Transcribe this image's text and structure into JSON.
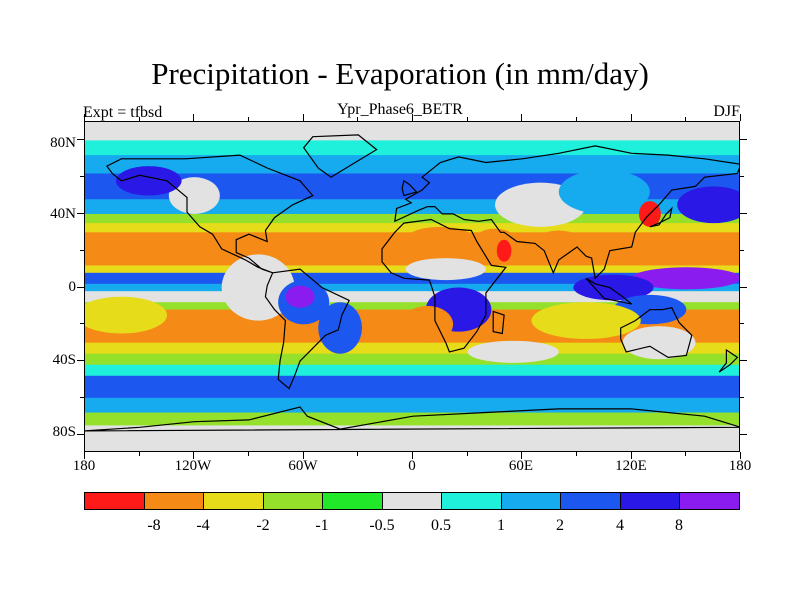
{
  "title": "Precipitation - Evaporation (in mm/day)",
  "left_label": "Expt = tfbsd",
  "center_label": "Ypr_Phase6_BETR",
  "right_label": "DJF",
  "lat_labels": [
    "80N",
    "40N",
    "0",
    "40S",
    "80S"
  ],
  "lon_labels": [
    "180",
    "120W",
    "60W",
    "0",
    "60E",
    "120E",
    "180"
  ],
  "colorbar": {
    "colors": [
      "#ff1a1a",
      "#f58a16",
      "#e6dc1a",
      "#94e02a",
      "#22e82a",
      "#e2e2e2",
      "#1ef0dc",
      "#16aaee",
      "#1c58f0",
      "#2a18e6",
      "#8a1cf0"
    ],
    "labels": [
      "-8",
      "-4",
      "-2",
      "-1",
      "-0.5",
      "0.5",
      "1",
      "2",
      "4",
      "8"
    ]
  },
  "zonal_bands": [
    {
      "lat_top": 90,
      "lat_bottom": 80,
      "color": "#e2e2e2"
    },
    {
      "lat_top": 80,
      "lat_bottom": 72,
      "color": "#1ef0dc"
    },
    {
      "lat_top": 72,
      "lat_bottom": 62,
      "color": "#16aaee"
    },
    {
      "lat_top": 62,
      "lat_bottom": 48,
      "color": "#1c58f0"
    },
    {
      "lat_top": 48,
      "lat_bottom": 40,
      "color": "#16aaee"
    },
    {
      "lat_top": 40,
      "lat_bottom": 35,
      "color": "#94e02a"
    },
    {
      "lat_top": 35,
      "lat_bottom": 30,
      "color": "#e6dc1a"
    },
    {
      "lat_top": 30,
      "lat_bottom": 12,
      "color": "#f58a16"
    },
    {
      "lat_top": 12,
      "lat_bottom": 8,
      "color": "#e6dc1a"
    },
    {
      "lat_top": 8,
      "lat_bottom": 2,
      "color": "#1c58f0"
    },
    {
      "lat_top": 2,
      "lat_bottom": -2,
      "color": "#16aaee"
    },
    {
      "lat_top": -2,
      "lat_bottom": -8,
      "color": "#e2e2e2"
    },
    {
      "lat_top": -8,
      "lat_bottom": -12,
      "color": "#94e02a"
    },
    {
      "lat_top": -12,
      "lat_bottom": -30,
      "color": "#f58a16"
    },
    {
      "lat_top": -30,
      "lat_bottom": -36,
      "color": "#e6dc1a"
    },
    {
      "lat_top": -36,
      "lat_bottom": -42,
      "color": "#94e02a"
    },
    {
      "lat_top": -42,
      "lat_bottom": -48,
      "color": "#1ef0dc"
    },
    {
      "lat_top": -48,
      "lat_bottom": -60,
      "color": "#1c58f0"
    },
    {
      "lat_top": -60,
      "lat_bottom": -68,
      "color": "#16aaee"
    },
    {
      "lat_top": -68,
      "lat_bottom": -75,
      "color": "#94e02a"
    },
    {
      "lat_top": -75,
      "lat_bottom": -90,
      "color": "#e2e2e2"
    }
  ],
  "patches": [
    {
      "lon": -85,
      "lat": 0,
      "rx": 20,
      "ry": 18,
      "color": "#e2e2e2"
    },
    {
      "lon": -60,
      "lat": -8,
      "rx": 14,
      "ry": 12,
      "color": "#1c58f0"
    },
    {
      "lon": -62,
      "lat": -5,
      "rx": 8,
      "ry": 6,
      "color": "#8a1cf0"
    },
    {
      "lon": -40,
      "lat": -22,
      "rx": 12,
      "ry": 14,
      "color": "#1c58f0"
    },
    {
      "lon": 25,
      "lat": -12,
      "rx": 18,
      "ry": 12,
      "color": "#2a18e6"
    },
    {
      "lon": 18,
      "lat": 10,
      "rx": 22,
      "ry": 6,
      "color": "#e2e2e2"
    },
    {
      "lon": 15,
      "lat": 25,
      "rx": 20,
      "ry": 8,
      "color": "#f58a16"
    },
    {
      "lon": 45,
      "lat": 22,
      "rx": 14,
      "ry": 10,
      "color": "#f58a16"
    },
    {
      "lon": 50,
      "lat": 20,
      "rx": 4,
      "ry": 6,
      "color": "#ff1a1a"
    },
    {
      "lon": 80,
      "lat": 22,
      "rx": 15,
      "ry": 9,
      "color": "#f58a16"
    },
    {
      "lon": 70,
      "lat": 45,
      "rx": 25,
      "ry": 12,
      "color": "#e2e2e2"
    },
    {
      "lon": 105,
      "lat": 52,
      "rx": 25,
      "ry": 12,
      "color": "#16aaee"
    },
    {
      "lon": 130,
      "lat": 40,
      "rx": 6,
      "ry": 7,
      "color": "#ff1a1a"
    },
    {
      "lon": 165,
      "lat": 45,
      "rx": 20,
      "ry": 10,
      "color": "#2a18e6"
    },
    {
      "lon": 150,
      "lat": 5,
      "rx": 30,
      "ry": 6,
      "color": "#8a1cf0"
    },
    {
      "lon": 110,
      "lat": 0,
      "rx": 22,
      "ry": 7,
      "color": "#2a18e6"
    },
    {
      "lon": 130,
      "lat": -12,
      "rx": 20,
      "ry": 8,
      "color": "#1c58f0"
    },
    {
      "lon": 95,
      "lat": -18,
      "rx": 30,
      "ry": 10,
      "color": "#e6dc1a"
    },
    {
      "lon": 135,
      "lat": -30,
      "rx": 20,
      "ry": 9,
      "color": "#e2e2e2"
    },
    {
      "lon": -160,
      "lat": -15,
      "rx": 25,
      "ry": 10,
      "color": "#e6dc1a"
    },
    {
      "lon": 55,
      "lat": -35,
      "rx": 25,
      "ry": 6,
      "color": "#e2e2e2"
    },
    {
      "lon": 8,
      "lat": -20,
      "rx": 14,
      "ry": 10,
      "color": "#f58a16"
    },
    {
      "lon": -120,
      "lat": 50,
      "rx": 14,
      "ry": 10,
      "color": "#e2e2e2"
    },
    {
      "lon": -145,
      "lat": 58,
      "rx": 18,
      "ry": 8,
      "color": "#2a18e6"
    }
  ],
  "land_outlines": [
    {
      "name": "north-america",
      "points": [
        [
          -168,
          66
        ],
        [
          -160,
          70
        ],
        [
          -140,
          70
        ],
        [
          -125,
          70
        ],
        [
          -95,
          72
        ],
        [
          -80,
          65
        ],
        [
          -62,
          58
        ],
        [
          -55,
          50
        ],
        [
          -66,
          45
        ],
        [
          -76,
          38
        ],
        [
          -81,
          31
        ],
        [
          -80,
          25
        ],
        [
          -90,
          29
        ],
        [
          -97,
          26
        ],
        [
          -97,
          19
        ],
        [
          -90,
          16
        ],
        [
          -83,
          10
        ],
        [
          -77,
          8
        ],
        [
          -85,
          11
        ],
        [
          -92,
          15
        ],
        [
          -105,
          21
        ],
        [
          -110,
          29
        ],
        [
          -117,
          33
        ],
        [
          -124,
          41
        ],
        [
          -124,
          49
        ],
        [
          -135,
          58
        ],
        [
          -150,
          61
        ],
        [
          -160,
          58
        ],
        [
          -165,
          62
        ]
      ]
    },
    {
      "name": "south-america",
      "points": [
        [
          -77,
          8
        ],
        [
          -62,
          10
        ],
        [
          -50,
          0
        ],
        [
          -35,
          -7
        ],
        [
          -39,
          -15
        ],
        [
          -41,
          -23
        ],
        [
          -48,
          -26
        ],
        [
          -57,
          -35
        ],
        [
          -62,
          -40
        ],
        [
          -65,
          -48
        ],
        [
          -68,
          -55
        ],
        [
          -74,
          -50
        ],
        [
          -73,
          -40
        ],
        [
          -71,
          -30
        ],
        [
          -70,
          -18
        ],
        [
          -76,
          -12
        ],
        [
          -81,
          -5
        ],
        [
          -80,
          1
        ]
      ]
    },
    {
      "name": "africa",
      "points": [
        [
          -17,
          21
        ],
        [
          -10,
          30
        ],
        [
          -5,
          35
        ],
        [
          10,
          37
        ],
        [
          20,
          32
        ],
        [
          32,
          31
        ],
        [
          35,
          25
        ],
        [
          43,
          12
        ],
        [
          51,
          11
        ],
        [
          40,
          -3
        ],
        [
          40,
          -15
        ],
        [
          35,
          -24
        ],
        [
          28,
          -33
        ],
        [
          20,
          -35
        ],
        [
          18,
          -30
        ],
        [
          12,
          -18
        ],
        [
          12,
          -5
        ],
        [
          9,
          4
        ],
        [
          -5,
          5
        ],
        [
          -12,
          8
        ],
        [
          -17,
          14
        ]
      ]
    },
    {
      "name": "eurasia",
      "points": [
        [
          -10,
          36
        ],
        [
          -9,
          43
        ],
        [
          -1,
          46
        ],
        [
          -4,
          48
        ],
        [
          5,
          53
        ],
        [
          9,
          57
        ],
        [
          5,
          60
        ],
        [
          15,
          68
        ],
        [
          25,
          71
        ],
        [
          40,
          68
        ],
        [
          60,
          70
        ],
        [
          80,
          73
        ],
        [
          100,
          77
        ],
        [
          120,
          73
        ],
        [
          140,
          72
        ],
        [
          160,
          70
        ],
        [
          180,
          67
        ],
        [
          178,
          62
        ],
        [
          160,
          60
        ],
        [
          155,
          55
        ],
        [
          142,
          53
        ],
        [
          135,
          45
        ],
        [
          128,
          38
        ],
        [
          122,
          30
        ],
        [
          120,
          22
        ],
        [
          108,
          20
        ],
        [
          105,
          10
        ],
        [
          100,
          5
        ],
        [
          98,
          16
        ],
        [
          95,
          17
        ],
        [
          90,
          22
        ],
        [
          80,
          15
        ],
        [
          77,
          8
        ],
        [
          72,
          20
        ],
        [
          67,
          24
        ],
        [
          57,
          25
        ],
        [
          50,
          30
        ],
        [
          48,
          30
        ],
        [
          43,
          37
        ],
        [
          36,
          36
        ],
        [
          28,
          37
        ],
        [
          22,
          40
        ],
        [
          16,
          40
        ],
        [
          12,
          44
        ],
        [
          8,
          44
        ],
        [
          3,
          42
        ]
      ]
    },
    {
      "name": "australia",
      "points": [
        [
          114,
          -22
        ],
        [
          122,
          -18
        ],
        [
          130,
          -12
        ],
        [
          137,
          -12
        ],
        [
          142,
          -11
        ],
        [
          146,
          -19
        ],
        [
          153,
          -26
        ],
        [
          150,
          -37
        ],
        [
          140,
          -38
        ],
        [
          130,
          -32
        ],
        [
          117,
          -35
        ],
        [
          114,
          -28
        ]
      ]
    },
    {
      "name": "greenland",
      "points": [
        [
          -55,
          82
        ],
        [
          -30,
          83
        ],
        [
          -20,
          75
        ],
        [
          -35,
          66
        ],
        [
          -45,
          60
        ],
        [
          -52,
          65
        ],
        [
          -60,
          76
        ]
      ]
    },
    {
      "name": "antarctica",
      "points": [
        [
          -180,
          -78
        ],
        [
          -150,
          -76
        ],
        [
          -120,
          -73
        ],
        [
          -90,
          -72
        ],
        [
          -62,
          -65
        ],
        [
          -58,
          -70
        ],
        [
          -40,
          -77
        ],
        [
          0,
          -70
        ],
        [
          40,
          -68
        ],
        [
          80,
          -66
        ],
        [
          120,
          -66
        ],
        [
          160,
          -70
        ],
        [
          180,
          -76
        ]
      ]
    },
    {
      "name": "madagascar",
      "points": [
        [
          44,
          -13
        ],
        [
          50,
          -15
        ],
        [
          49,
          -25
        ],
        [
          44,
          -24
        ]
      ]
    },
    {
      "name": "new-zealand",
      "points": [
        [
          172,
          -34
        ],
        [
          178,
          -38
        ],
        [
          174,
          -42
        ],
        [
          168,
          -46
        ],
        [
          172,
          -41
        ]
      ]
    },
    {
      "name": "japan",
      "points": [
        [
          130,
          33
        ],
        [
          135,
          35
        ],
        [
          141,
          38
        ],
        [
          142,
          43
        ],
        [
          139,
          40
        ],
        [
          135,
          34
        ]
      ]
    },
    {
      "name": "uk",
      "points": [
        [
          -5,
          50
        ],
        [
          2,
          52
        ],
        [
          -2,
          56
        ],
        [
          -5,
          58
        ],
        [
          -6,
          54
        ]
      ]
    },
    {
      "name": "indonesia",
      "points": [
        [
          95,
          5
        ],
        [
          105,
          -6
        ],
        [
          115,
          -8
        ],
        [
          120,
          -9
        ],
        [
          115,
          -5
        ],
        [
          108,
          0
        ],
        [
          100,
          2
        ]
      ]
    }
  ]
}
